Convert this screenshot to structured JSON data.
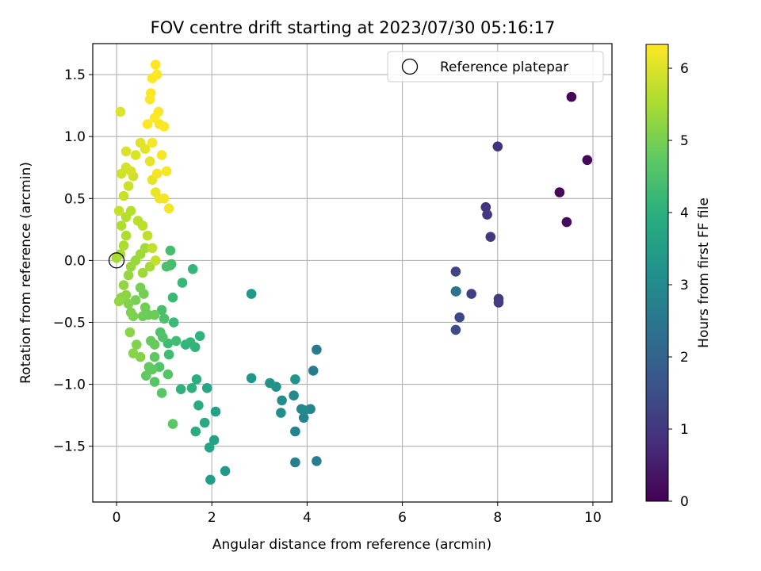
{
  "chart_data": {
    "type": "scatter",
    "title": "FOV centre drift starting at 2023/07/30 05:16:17",
    "xlabel": "Angular distance from reference (arcmin)",
    "ylabel": "Rotation from reference (arcmin)",
    "xlim": [
      -0.5,
      10.4
    ],
    "ylim": [
      -1.95,
      1.75
    ],
    "xticks": [
      0,
      2,
      4,
      6,
      8,
      10
    ],
    "yticks": [
      -1.5,
      -1.0,
      -0.5,
      0.0,
      0.5,
      1.0,
      1.5
    ],
    "grid": true,
    "colormap": "viridis",
    "colorbar": {
      "label": "Hours from first FF file",
      "range": [
        0,
        6.33
      ],
      "ticks": [
        0,
        1,
        2,
        3,
        4,
        5,
        6
      ]
    },
    "legend": {
      "position": "top-right",
      "entries": [
        "Reference platepar"
      ]
    },
    "reference_point": {
      "x": 0.0,
      "y": 0.0
    },
    "points": [
      [
        9.55,
        1.32,
        0.05
      ],
      [
        9.88,
        0.81,
        0.1
      ],
      [
        9.3,
        0.55,
        0.12
      ],
      [
        9.45,
        0.31,
        0.18
      ],
      [
        8.0,
        0.92,
        0.9
      ],
      [
        7.75,
        0.43,
        0.95
      ],
      [
        7.78,
        0.37,
        1.0
      ],
      [
        7.85,
        0.19,
        1.05
      ],
      [
        8.02,
        -0.31,
        1.1
      ],
      [
        8.02,
        -0.34,
        1.12
      ],
      [
        7.45,
        -0.27,
        1.2
      ],
      [
        7.12,
        -0.09,
        1.3
      ],
      [
        7.2,
        -0.46,
        1.35
      ],
      [
        7.12,
        -0.56,
        1.4
      ],
      [
        7.12,
        -0.25,
        2.3
      ],
      [
        7.13,
        -0.25,
        2.4
      ],
      [
        4.2,
        -0.72,
        2.6
      ],
      [
        4.13,
        -0.89,
        2.65
      ],
      [
        4.2,
        -1.62,
        2.7
      ],
      [
        3.75,
        -1.63,
        2.75
      ],
      [
        3.93,
        -1.27,
        2.8
      ],
      [
        3.75,
        -1.38,
        2.85
      ],
      [
        4.07,
        -1.2,
        2.9
      ],
      [
        3.88,
        -1.2,
        2.95
      ],
      [
        3.95,
        -1.21,
        3.0
      ],
      [
        3.72,
        -1.09,
        3.05
      ],
      [
        3.47,
        -1.13,
        3.1
      ],
      [
        3.45,
        -1.23,
        3.15
      ],
      [
        3.35,
        -1.02,
        3.2
      ],
      [
        3.22,
        -0.99,
        3.25
      ],
      [
        3.75,
        -0.96,
        3.3
      ],
      [
        2.83,
        -0.95,
        3.35
      ],
      [
        2.83,
        -0.27,
        3.4
      ],
      [
        2.28,
        -1.7,
        3.45
      ],
      [
        1.97,
        -1.77,
        3.55
      ],
      [
        2.08,
        -1.22,
        3.6
      ],
      [
        2.05,
        -1.45,
        3.65
      ],
      [
        1.95,
        -1.51,
        3.7
      ],
      [
        1.9,
        -1.03,
        3.75
      ],
      [
        1.85,
        -1.31,
        3.8
      ],
      [
        1.72,
        -1.17,
        3.85
      ],
      [
        1.66,
        -1.38,
        3.9
      ],
      [
        1.68,
        -0.96,
        3.95
      ],
      [
        1.58,
        -1.03,
        4.0
      ],
      [
        1.35,
        -1.04,
        4.05
      ],
      [
        1.75,
        -0.61,
        4.1
      ],
      [
        1.65,
        -0.7,
        4.12
      ],
      [
        1.45,
        -0.68,
        4.15
      ],
      [
        1.55,
        -0.66,
        4.18
      ],
      [
        1.6,
        -0.07,
        4.2
      ],
      [
        1.38,
        -0.18,
        4.25
      ],
      [
        1.18,
        -0.3,
        4.28
      ],
      [
        1.2,
        -0.5,
        4.3
      ],
      [
        1.08,
        -0.67,
        4.33
      ],
      [
        1.1,
        -0.76,
        4.35
      ],
      [
        1.25,
        -0.65,
        4.38
      ],
      [
        1.13,
        -0.04,
        4.4
      ],
      [
        1.15,
        -0.03,
        4.43
      ],
      [
        1.13,
        0.08,
        4.45
      ],
      [
        1.05,
        -0.05,
        4.48
      ],
      [
        0.95,
        -0.4,
        4.5
      ],
      [
        1.0,
        -0.47,
        4.52
      ],
      [
        0.92,
        -0.58,
        4.55
      ],
      [
        0.97,
        -0.62,
        4.58
      ],
      [
        0.9,
        -0.86,
        4.6
      ],
      [
        1.08,
        -0.92,
        4.62
      ],
      [
        0.8,
        -0.98,
        4.65
      ],
      [
        0.95,
        -1.07,
        4.68
      ],
      [
        1.18,
        -1.32,
        4.7
      ],
      [
        0.8,
        -0.78,
        4.72
      ],
      [
        0.75,
        -0.88,
        4.75
      ],
      [
        0.68,
        -0.86,
        4.78
      ],
      [
        0.62,
        -0.93,
        4.8
      ],
      [
        0.72,
        -0.65,
        4.82
      ],
      [
        0.8,
        -0.68,
        4.85
      ],
      [
        0.8,
        -0.44,
        4.88
      ],
      [
        0.67,
        -0.44,
        4.9
      ],
      [
        0.55,
        -0.45,
        4.92
      ],
      [
        0.6,
        -0.38,
        4.95
      ],
      [
        0.57,
        -0.27,
        4.98
      ],
      [
        0.5,
        -0.22,
        5.0
      ],
      [
        0.4,
        -0.32,
        5.02
      ],
      [
        0.35,
        -0.45,
        5.05
      ],
      [
        0.3,
        -0.42,
        5.08
      ],
      [
        0.25,
        -0.35,
        5.1
      ],
      [
        0.42,
        -0.68,
        5.12
      ],
      [
        0.5,
        -0.78,
        5.15
      ],
      [
        0.35,
        -0.75,
        5.18
      ],
      [
        0.28,
        -0.58,
        5.2
      ],
      [
        0.2,
        -0.28,
        5.22
      ],
      [
        0.1,
        -0.3,
        5.25
      ],
      [
        0.05,
        -0.33,
        5.28
      ],
      [
        0.15,
        -0.2,
        5.3
      ],
      [
        0.25,
        -0.12,
        5.32
      ],
      [
        0.3,
        -0.05,
        5.35
      ],
      [
        0.4,
        0.0,
        5.38
      ],
      [
        0.5,
        0.05,
        5.4
      ],
      [
        0.55,
        -0.1,
        5.42
      ],
      [
        0.6,
        0.1,
        5.45
      ],
      [
        0.7,
        -0.05,
        5.48
      ],
      [
        0.0,
        0.02,
        5.5
      ],
      [
        0.08,
        0.05,
        5.52
      ],
      [
        0.15,
        0.12,
        5.55
      ],
      [
        0.2,
        0.2,
        5.58
      ],
      [
        0.1,
        0.28,
        5.6
      ],
      [
        0.2,
        0.35,
        5.62
      ],
      [
        0.3,
        0.4,
        5.65
      ],
      [
        0.45,
        0.32,
        5.68
      ],
      [
        0.55,
        0.28,
        5.7
      ],
      [
        0.65,
        0.2,
        5.72
      ],
      [
        0.75,
        0.1,
        5.75
      ],
      [
        0.82,
        0.0,
        5.78
      ],
      [
        0.05,
        0.4,
        5.8
      ],
      [
        0.15,
        0.52,
        5.82
      ],
      [
        0.25,
        0.6,
        5.85
      ],
      [
        0.35,
        0.68,
        5.88
      ],
      [
        0.1,
        0.7,
        5.9
      ],
      [
        0.2,
        0.75,
        5.92
      ],
      [
        0.3,
        0.72,
        5.95
      ],
      [
        0.4,
        0.85,
        5.98
      ],
      [
        0.2,
        0.88,
        6.0
      ],
      [
        0.08,
        1.2,
        6.02
      ],
      [
        0.5,
        0.95,
        6.05
      ],
      [
        0.6,
        0.9,
        6.08
      ],
      [
        0.7,
        0.8,
        6.1
      ],
      [
        0.75,
        0.65,
        6.12
      ],
      [
        0.82,
        0.55,
        6.15
      ],
      [
        0.9,
        0.5,
        6.18
      ],
      [
        1.0,
        0.5,
        6.2
      ],
      [
        1.1,
        0.42,
        6.22
      ],
      [
        0.85,
        0.7,
        6.24
      ],
      [
        1.05,
        0.72,
        6.25
      ],
      [
        0.95,
        0.85,
        6.26
      ],
      [
        0.75,
        0.95,
        6.27
      ],
      [
        0.9,
        1.1,
        6.28
      ],
      [
        1.0,
        1.08,
        6.29
      ],
      [
        0.8,
        1.15,
        6.3
      ],
      [
        0.7,
        1.3,
        6.3
      ],
      [
        0.72,
        1.35,
        6.31
      ],
      [
        0.88,
        1.2,
        6.31
      ],
      [
        0.75,
        1.47,
        6.32
      ],
      [
        0.85,
        1.5,
        6.32
      ],
      [
        0.82,
        1.58,
        6.33
      ],
      [
        0.65,
        1.1,
        6.33
      ]
    ]
  }
}
